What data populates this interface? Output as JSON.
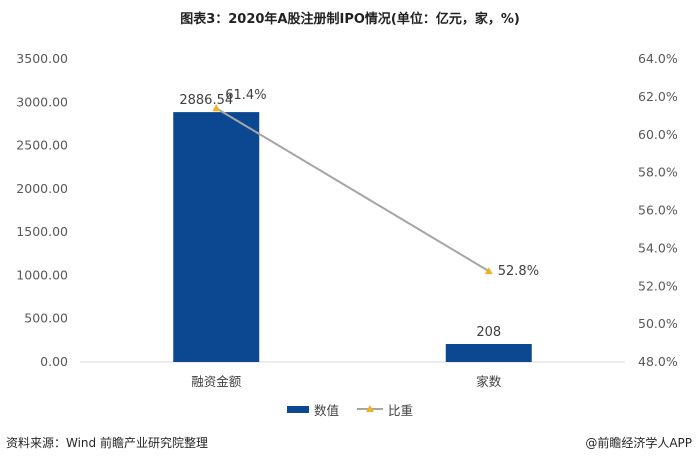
{
  "title": "图表3：2020年A股注册制IPO情况(单位：亿元，家，%)",
  "legend": {
    "bar_label": "数值",
    "line_label": "比重"
  },
  "source": "资料来源：Wind 前瞻产业研究院整理",
  "brand": "@前瞻经济学人APP",
  "colors": {
    "bar": "#0b4891",
    "line": "#a6a6a6",
    "marker": "#f2b21d"
  },
  "chart_data": {
    "type": "bar",
    "title": "图表3：2020年A股注册制IPO情况(单位：亿元，家，%)",
    "categories": [
      "融资金额",
      "家数"
    ],
    "series": [
      {
        "name": "数值",
        "type": "bar",
        "axis": "left",
        "values": [
          2886.54,
          208
        ],
        "labels": [
          "2886.54",
          "208"
        ]
      },
      {
        "name": "比重",
        "type": "line",
        "axis": "right",
        "values": [
          61.4,
          52.8
        ],
        "labels": [
          "61.4%",
          "52.8%"
        ]
      }
    ],
    "y_left": {
      "min": 0,
      "max": 3500,
      "step": 500,
      "tick_labels": [
        "0.00",
        "500.00",
        "1000.00",
        "1500.00",
        "2000.00",
        "2500.00",
        "3000.00",
        "3500.00"
      ]
    },
    "y_right": {
      "min": 48,
      "max": 64,
      "step": 2,
      "tick_labels": [
        "48.0%",
        "50.0%",
        "52.0%",
        "54.0%",
        "56.0%",
        "58.0%",
        "60.0%",
        "62.0%",
        "64.0%"
      ]
    },
    "grid": false,
    "legend_position": "bottom"
  }
}
